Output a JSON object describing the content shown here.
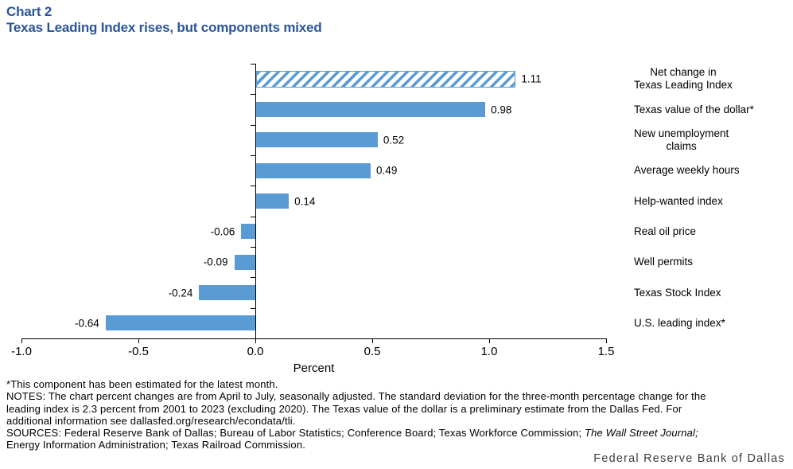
{
  "title": {
    "label": "Chart 2",
    "heading": "Texas Leading Index rises, but components mixed",
    "accent_color": "#2B5597"
  },
  "chart_data": {
    "type": "bar",
    "orientation": "horizontal",
    "title": "Texas Leading Index rises, but components mixed",
    "categories": [
      "Net change in\nTexas Leading Index",
      "Texas value of the dollar*",
      "New unemployment\nclaims",
      "Average weekly hours",
      "Help-wanted index",
      "Real oil price",
      "Well permits",
      "Texas Stock Index",
      "U.S. leading index*"
    ],
    "values": [
      1.11,
      0.98,
      0.52,
      0.49,
      0.14,
      -0.06,
      -0.09,
      -0.24,
      -0.64
    ],
    "data_labels": [
      "1.11",
      "0.98",
      "0.52",
      "0.49",
      "0.14",
      "-0.06",
      "-0.09",
      "-0.24",
      "-0.64"
    ],
    "xlabel": "Percent",
    "xlim": [
      -1.0,
      1.5
    ],
    "xticks": [
      "-1.0",
      "-0.5",
      "0.0",
      "0.5",
      "1.0",
      "1.5"
    ],
    "bar_color": "#5B9BD5",
    "first_bar_hatched": true,
    "grid": false,
    "legend": "none"
  },
  "footnotes": {
    "asterisk_note": "*This component has been estimated for the latest month.",
    "notes_lines": [
      "NOTES: The chart percent changes are from April to July, seasonally adjusted. The standard deviation for the three-month percentage change for the",
      "leading index is 2.3 percent from 2001 to 2023 (excluding 2020). The Texas value of the dollar is a preliminary estimate from the Dallas Fed. For",
      "additional information see dallasfed.org/research/econdata/tli."
    ],
    "sources_line1_pre": "SOURCES: Federal Reserve Bank of Dallas; Bureau of Labor Statistics; Conference Board; Texas Workforce Commission; ",
    "sources_line1_italic": "The Wall Street Journal;",
    "sources_line2": "Energy Information Administration; Texas Railroad Commission."
  },
  "branding": "Federal Reserve Bank of Dallas"
}
